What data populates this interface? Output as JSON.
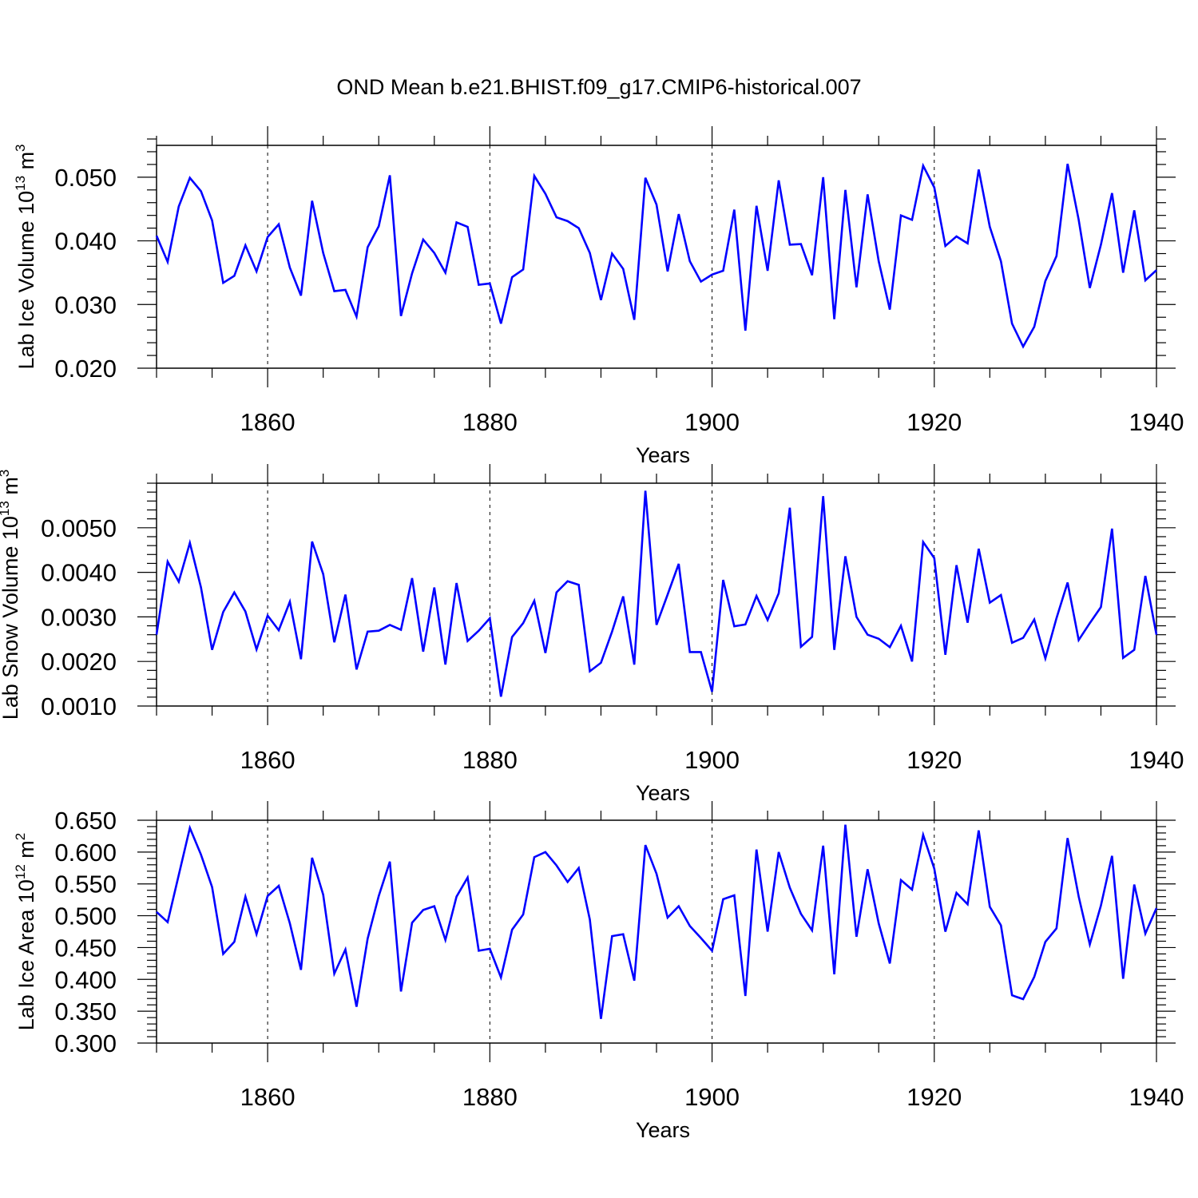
{
  "title": "OND Mean b.e21.BHIST.f09_g17.CMIP6-historical.007",
  "colors": {
    "line": "#0000ff",
    "axes": "#000000",
    "grid": "#000000",
    "background": "#ffffff"
  },
  "chart_data": [
    {
      "type": "line",
      "ylabel_main": "Lab Ice Volume 10",
      "ylabel_exp": "13",
      "ylabel_unit": " m",
      "ylabel_unit_exp": "3",
      "xlabel": "Years",
      "xlim": [
        1850,
        1940
      ],
      "ylim": [
        0.02,
        0.055
      ],
      "x_ticks": [
        1860,
        1880,
        1900,
        1920,
        1940
      ],
      "x_tick_labels": [
        "1860",
        "1880",
        "1900",
        "1920",
        "1940"
      ],
      "y_ticks": [
        0.02,
        0.03,
        0.04,
        0.05
      ],
      "y_tick_labels": [
        "0.020",
        "0.030",
        "0.040",
        "0.050"
      ],
      "grid": "vertical dashed at major x ticks",
      "x_start": 1850,
      "values": [
        0.0408,
        0.0367,
        0.0454,
        0.0499,
        0.0478,
        0.0432,
        0.0334,
        0.0345,
        0.0393,
        0.0352,
        0.0406,
        0.0426,
        0.0358,
        0.0314,
        0.0463,
        0.0381,
        0.0321,
        0.0323,
        0.0281,
        0.039,
        0.0423,
        0.0503,
        0.0282,
        0.0349,
        0.0402,
        0.0381,
        0.035,
        0.0429,
        0.0422,
        0.0331,
        0.0333,
        0.027,
        0.0343,
        0.0355,
        0.0502,
        0.0474,
        0.0437,
        0.0431,
        0.042,
        0.0381,
        0.0307,
        0.038,
        0.0356,
        0.0276,
        0.0499,
        0.0457,
        0.0352,
        0.0442,
        0.0368,
        0.0336,
        0.0347,
        0.0353,
        0.0449,
        0.0259,
        0.0455,
        0.0353,
        0.0495,
        0.0394,
        0.0395,
        0.0346,
        0.05,
        0.0277,
        0.048,
        0.0327,
        0.0473,
        0.0368,
        0.0292,
        0.044,
        0.0433,
        0.0518,
        0.0484,
        0.0392,
        0.0407,
        0.0396,
        0.0512,
        0.0422,
        0.0368,
        0.027,
        0.0234,
        0.0265,
        0.0337,
        0.0376,
        0.0521,
        0.0433,
        0.0326,
        0.0394,
        0.0475,
        0.035,
        0.0448,
        0.0338,
        0.0354
      ]
    },
    {
      "type": "line",
      "ylabel_main": "Lab Snow Volume 10",
      "ylabel_exp": "13",
      "ylabel_unit": " m",
      "ylabel_unit_exp": "3",
      "xlabel": "Years",
      "xlim": [
        1850,
        1940
      ],
      "ylim": [
        0.001,
        0.006
      ],
      "x_ticks": [
        1860,
        1880,
        1900,
        1920,
        1940
      ],
      "x_tick_labels": [
        "1860",
        "1880",
        "1900",
        "1920",
        "1940"
      ],
      "y_ticks": [
        0.001,
        0.002,
        0.003,
        0.004,
        0.005
      ],
      "y_tick_labels": [
        "0.0010",
        "0.0020",
        "0.0030",
        "0.0040",
        "0.0050"
      ],
      "grid": "vertical dashed at major x ticks",
      "x_start": 1850,
      "values": [
        0.0026,
        0.00424,
        0.00379,
        0.00466,
        0.00366,
        0.00226,
        0.00311,
        0.00355,
        0.00312,
        0.00227,
        0.00303,
        0.0027,
        0.00334,
        0.00205,
        0.00469,
        0.00396,
        0.00243,
        0.0035,
        0.00182,
        0.00267,
        0.00269,
        0.00282,
        0.00271,
        0.00387,
        0.00222,
        0.00366,
        0.00193,
        0.00376,
        0.00246,
        0.00269,
        0.00297,
        0.00121,
        0.00255,
        0.00286,
        0.00336,
        0.00219,
        0.00355,
        0.0038,
        0.00372,
        0.00178,
        0.00197,
        0.00267,
        0.00346,
        0.00193,
        0.00583,
        0.00282,
        0.0035,
        0.00419,
        0.00221,
        0.00221,
        0.00132,
        0.00383,
        0.00279,
        0.00283,
        0.00347,
        0.00293,
        0.00353,
        0.00545,
        0.00233,
        0.00255,
        0.00571,
        0.00226,
        0.00436,
        0.003,
        0.0026,
        0.00251,
        0.00232,
        0.0028,
        0.002,
        0.00468,
        0.00432,
        0.00215,
        0.00416,
        0.00287,
        0.00453,
        0.00332,
        0.00349,
        0.00242,
        0.00253,
        0.00294,
        0.00207,
        0.00297,
        0.00377,
        0.00248,
        0.00286,
        0.00322,
        0.00498,
        0.00208,
        0.00226,
        0.00392,
        0.0026
      ]
    },
    {
      "type": "line",
      "ylabel_main": "Lab Ice Area 10",
      "ylabel_exp": "12",
      "ylabel_unit": " m",
      "ylabel_unit_exp": "2",
      "xlabel": "Years",
      "xlim": [
        1850,
        1940
      ],
      "ylim": [
        0.3,
        0.65
      ],
      "x_ticks": [
        1860,
        1880,
        1900,
        1920,
        1940
      ],
      "x_tick_labels": [
        "1860",
        "1880",
        "1900",
        "1920",
        "1940"
      ],
      "y_ticks": [
        0.3,
        0.35,
        0.4,
        0.45,
        0.5,
        0.55,
        0.6,
        0.65
      ],
      "y_tick_labels": [
        "0.300",
        "0.350",
        "0.400",
        "0.450",
        "0.500",
        "0.550",
        "0.600",
        "0.650"
      ],
      "grid": "vertical dashed at major x ticks",
      "x_start": 1850,
      "values": [
        0.506,
        0.49,
        0.564,
        0.638,
        0.596,
        0.545,
        0.44,
        0.459,
        0.53,
        0.471,
        0.531,
        0.547,
        0.488,
        0.415,
        0.591,
        0.533,
        0.409,
        0.447,
        0.357,
        0.464,
        0.531,
        0.585,
        0.381,
        0.489,
        0.509,
        0.515,
        0.462,
        0.53,
        0.56,
        0.445,
        0.448,
        0.403,
        0.478,
        0.502,
        0.592,
        0.6,
        0.579,
        0.553,
        0.575,
        0.494,
        0.338,
        0.468,
        0.471,
        0.398,
        0.611,
        0.566,
        0.497,
        0.515,
        0.484,
        0.465,
        0.445,
        0.526,
        0.532,
        0.374,
        0.604,
        0.475,
        0.6,
        0.544,
        0.503,
        0.477,
        0.61,
        0.408,
        0.643,
        0.467,
        0.573,
        0.488,
        0.425,
        0.556,
        0.541,
        0.627,
        0.574,
        0.475,
        0.536,
        0.518,
        0.634,
        0.514,
        0.485,
        0.375,
        0.369,
        0.404,
        0.459,
        0.48,
        0.622,
        0.53,
        0.455,
        0.516,
        0.594,
        0.401,
        0.549,
        0.472,
        0.512
      ]
    }
  ]
}
